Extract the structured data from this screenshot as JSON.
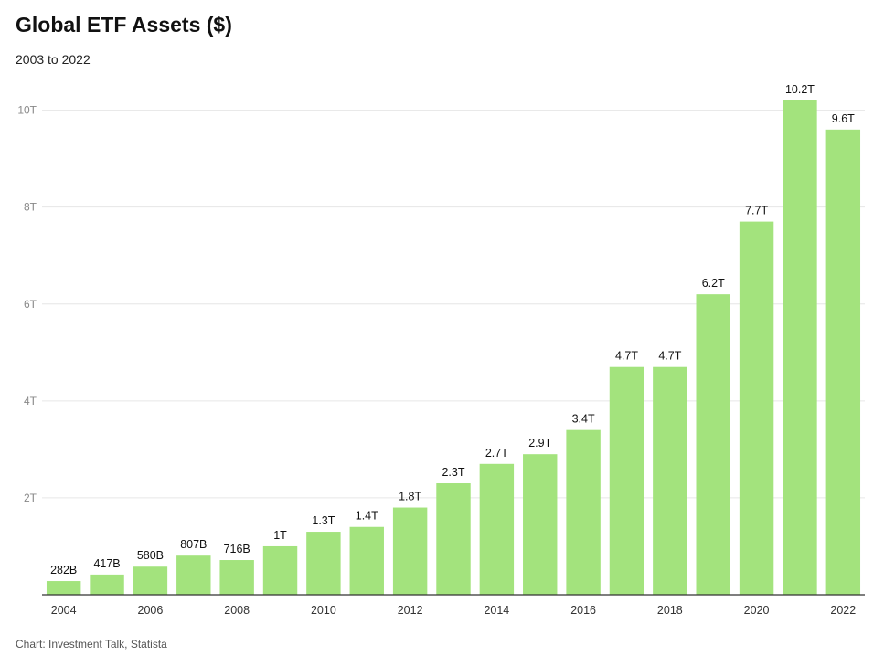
{
  "title": "Global ETF Assets ($)",
  "subtitle": "2003 to 2022",
  "source": "Chart: Investment Talk, Statista",
  "colors": {
    "bar": "#a3e37d",
    "grid": "#e6e6e6",
    "axis": "#333333"
  },
  "chart_data": {
    "type": "bar",
    "categories": [
      "2004",
      "2005",
      "2006",
      "2007",
      "2008",
      "2009",
      "2010",
      "2011",
      "2012",
      "2013",
      "2014",
      "2015",
      "2016",
      "2017",
      "2018",
      "2019",
      "2020",
      "2021",
      "2022"
    ],
    "values": [
      0.282,
      0.417,
      0.58,
      0.807,
      0.716,
      1.0,
      1.3,
      1.4,
      1.8,
      2.3,
      2.7,
      2.9,
      3.4,
      4.7,
      4.7,
      6.2,
      7.7,
      10.2,
      9.6
    ],
    "value_labels": [
      "282B",
      "417B",
      "580B",
      "807B",
      "716B",
      "1T",
      "1.3T",
      "1.4T",
      "1.8T",
      "2.3T",
      "2.7T",
      "2.9T",
      "3.4T",
      "4.7T",
      "4.7T",
      "6.2T",
      "7.7T",
      "10.2T",
      "9.6T"
    ],
    "x_tick_labels": [
      "2004",
      "",
      "2006",
      "",
      "2008",
      "",
      "2010",
      "",
      "2012",
      "",
      "2014",
      "",
      "2016",
      "",
      "2018",
      "",
      "2020",
      "",
      "2022"
    ],
    "y_ticks": [
      2,
      4,
      6,
      8,
      10
    ],
    "y_tick_labels": [
      "2T",
      "4T",
      "6T",
      "8T",
      "10T"
    ],
    "ylim": [
      0,
      10.2
    ],
    "xlabel": "",
    "ylabel": "",
    "grid": true
  }
}
